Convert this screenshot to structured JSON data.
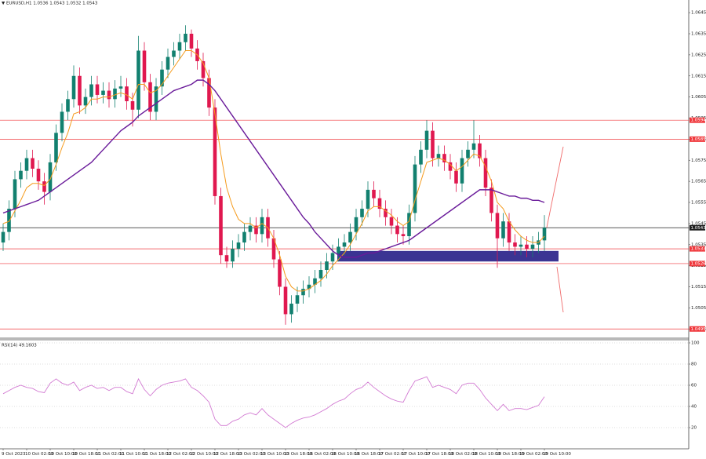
{
  "chart_data": [
    {
      "type": "candlestick",
      "title": "EURUSD,H1 1.0536 1.0543 1.0532 1.0543",
      "categories": [
        "9 Oct 2023",
        null,
        null,
        null,
        "10 Oct 02:00",
        null,
        null,
        null,
        "10 Oct 10:00",
        null,
        null,
        null,
        "10 Oct 18:00",
        null,
        null,
        null,
        "11 Oct 02:00",
        null,
        null,
        null,
        "11 Oct 10:00",
        null,
        null,
        null,
        "11 Oct 18:00",
        null,
        null,
        null,
        "12 Oct 02:00",
        null,
        null,
        null,
        "12 Oct 10:00",
        null,
        null,
        null,
        "12 Oct 18:00",
        null,
        null,
        null,
        "13 Oct 02:00",
        null,
        null,
        null,
        "13 Oct 10:00",
        null,
        null,
        null,
        "13 Oct 18:00",
        null,
        null,
        null,
        "16 Oct 02:00",
        null,
        null,
        null,
        "16 Oct 10:00",
        null,
        null,
        null,
        "16 Oct 18:00",
        null,
        null,
        null,
        "17 Oct 02:00",
        null,
        null,
        null,
        "17 Oct 10:00",
        null,
        null,
        null,
        "17 Oct 18:00",
        null,
        null,
        null,
        "18 Oct 02:00",
        null,
        null,
        null,
        "18 Oct 10:00",
        null,
        null,
        null,
        "18 Oct 18:00",
        null,
        null,
        null,
        "19 Oct 02:00",
        null,
        null,
        null,
        "19 Oct 10:00"
      ],
      "open": [
        1.0536,
        1.0541,
        1.0552,
        1.0566,
        1.057,
        1.0576,
        1.0571,
        1.0565,
        1.056,
        1.0574,
        1.0588,
        1.0598,
        1.0604,
        1.0615,
        1.0601,
        1.0605,
        1.0611,
        1.0606,
        1.0608,
        1.0604,
        1.0609,
        1.061,
        1.0603,
        1.0599,
        1.0627,
        1.0612,
        1.0598,
        1.061,
        1.0618,
        1.0624,
        1.0627,
        1.0631,
        1.0635,
        1.0628,
        1.0622,
        1.0614,
        1.06,
        1.0558,
        1.053,
        1.0527,
        1.0533,
        1.0536,
        1.0541,
        1.0544,
        1.054,
        1.0548,
        1.0538,
        1.0528,
        1.0515,
        1.0502,
        1.0507,
        1.0511,
        1.0514,
        1.0516,
        1.0519,
        1.0523,
        1.0527,
        1.0531,
        1.0534,
        1.0536,
        1.0541,
        1.0548,
        1.0552,
        1.0561,
        1.0557,
        1.0552,
        1.0548,
        1.0544,
        1.054,
        1.0539,
        1.055,
        1.0573,
        1.058,
        1.0589,
        1.0576,
        1.0578,
        1.0574,
        1.057,
        1.0564,
        1.0576,
        1.058,
        1.0583,
        1.0576,
        1.0562,
        1.055,
        1.0538,
        1.0546,
        1.0536,
        1.0534,
        1.0535,
        1.0533,
        1.0535,
        1.0537
      ],
      "high": [
        1.0545,
        1.0556,
        1.057,
        1.0574,
        1.058,
        1.058,
        1.0575,
        1.0569,
        1.0578,
        1.0592,
        1.0602,
        1.0608,
        1.062,
        1.0619,
        1.0609,
        1.0615,
        1.0615,
        1.0612,
        1.0612,
        1.0613,
        1.0615,
        1.0614,
        1.0607,
        1.0634,
        1.0631,
        1.0616,
        1.0614,
        1.0622,
        1.0628,
        1.0631,
        1.0635,
        1.0639,
        1.0637,
        1.0632,
        1.0626,
        1.0618,
        1.0604,
        1.0562,
        1.0534,
        1.0537,
        1.054,
        1.0545,
        1.0548,
        1.0548,
        1.0552,
        1.0552,
        1.0542,
        1.0532,
        1.0519,
        1.0511,
        1.0515,
        1.0518,
        1.052,
        1.0523,
        1.0527,
        1.0531,
        1.0535,
        1.0538,
        1.054,
        1.0545,
        1.0552,
        1.0556,
        1.0565,
        1.0565,
        1.0561,
        1.0556,
        1.0552,
        1.0548,
        1.0544,
        1.0554,
        1.0577,
        1.0584,
        1.0594,
        1.0593,
        1.0582,
        1.0582,
        1.0578,
        1.0574,
        1.058,
        1.0584,
        1.0594,
        1.0587,
        1.058,
        1.0566,
        1.0554,
        1.055,
        1.055,
        1.054,
        1.0539,
        1.0539,
        1.0539,
        1.0541,
        1.0549
      ],
      "low": [
        1.0532,
        1.0537,
        1.0548,
        1.0562,
        1.0566,
        1.0567,
        1.0561,
        1.0554,
        1.0556,
        1.057,
        1.0584,
        1.0594,
        1.06,
        1.0597,
        1.0597,
        1.0601,
        1.0602,
        1.0602,
        1.06,
        1.06,
        1.0605,
        1.0599,
        1.0591,
        1.0595,
        1.0608,
        1.0594,
        1.0594,
        1.0606,
        1.0614,
        1.062,
        1.0623,
        1.0627,
        1.0624,
        1.0618,
        1.061,
        1.0596,
        1.0554,
        1.0526,
        1.0524,
        1.0524,
        1.0529,
        1.0532,
        1.0537,
        1.0536,
        1.0536,
        1.0534,
        1.0524,
        1.0511,
        1.0497,
        1.0498,
        1.0503,
        1.0507,
        1.051,
        1.0512,
        1.0515,
        1.0519,
        1.0523,
        1.0527,
        1.053,
        1.0532,
        1.0537,
        1.0544,
        1.0548,
        1.0553,
        1.0548,
        1.0544,
        1.054,
        1.0536,
        1.0535,
        1.0535,
        1.0546,
        1.0569,
        1.0576,
        1.0572,
        1.0572,
        1.057,
        1.0566,
        1.056,
        1.056,
        1.0572,
        1.0576,
        1.0572,
        1.0558,
        1.0546,
        1.0524,
        1.0534,
        1.0532,
        1.053,
        1.053,
        1.0529,
        1.0529,
        1.0531,
        1.0532
      ],
      "close": [
        1.0541,
        1.0552,
        1.0566,
        1.057,
        1.0576,
        1.0571,
        1.0565,
        1.056,
        1.0574,
        1.0588,
        1.0598,
        1.0604,
        1.0615,
        1.0601,
        1.0605,
        1.0611,
        1.0606,
        1.0608,
        1.0604,
        1.0609,
        1.061,
        1.0603,
        1.0599,
        1.0627,
        1.0612,
        1.0598,
        1.061,
        1.0618,
        1.0624,
        1.0627,
        1.0631,
        1.0635,
        1.0628,
        1.0622,
        1.0614,
        1.06,
        1.0558,
        1.053,
        1.0527,
        1.0533,
        1.0536,
        1.0541,
        1.0544,
        1.054,
        1.0548,
        1.0538,
        1.0528,
        1.0515,
        1.0502,
        1.0507,
        1.0511,
        1.0514,
        1.0516,
        1.0519,
        1.0523,
        1.0527,
        1.0531,
        1.0534,
        1.0536,
        1.0541,
        1.0548,
        1.0552,
        1.0561,
        1.0557,
        1.0552,
        1.0548,
        1.0544,
        1.054,
        1.0539,
        1.055,
        1.0573,
        1.058,
        1.0589,
        1.0576,
        1.0578,
        1.0574,
        1.057,
        1.0564,
        1.0576,
        1.058,
        1.0583,
        1.0576,
        1.0562,
        1.055,
        1.0538,
        1.0546,
        1.0536,
        1.0534,
        1.0535,
        1.0533,
        1.0535,
        1.0537,
        1.0543
      ],
      "up_color": "#12806f",
      "down_color": "#e0184f",
      "series": [
        {
          "color": "#f59a1b",
          "values": [
            1.0545,
            1.0546,
            1.0551,
            1.0556,
            1.0562,
            1.0564,
            1.0564,
            1.0563,
            1.0566,
            1.0573,
            1.0581,
            1.0588,
            1.0597,
            1.0598,
            1.06,
            1.0604,
            1.0604,
            1.0605,
            1.0605,
            1.0606,
            1.0607,
            1.0606,
            1.0604,
            1.0611,
            1.0611,
            1.0607,
            1.0608,
            1.0611,
            1.0615,
            1.0619,
            1.0623,
            1.0627,
            1.0627,
            1.0625,
            1.0621,
            1.0614,
            1.0597,
            1.0578,
            1.0562,
            1.0553,
            1.0547,
            1.0545,
            1.0545,
            1.0543,
            1.0545,
            1.0543,
            1.0538,
            1.053,
            1.052,
            1.0515,
            1.0513,
            1.0513,
            1.0514,
            1.0516,
            1.0518,
            1.0521,
            1.0525,
            1.0528,
            1.0531,
            1.0535,
            1.054,
            1.0545,
            1.0551,
            1.0553,
            1.0553,
            1.0551,
            1.0549,
            1.0546,
            1.0544,
            1.0546,
            1.0556,
            1.0565,
            1.0574,
            1.0575,
            1.0576,
            1.0575,
            1.0573,
            1.057,
            1.0572,
            1.0575,
            1.0578,
            1.0577,
            1.0572,
            1.0565,
            1.0555,
            1.0552,
            1.0546,
            1.0542,
            1.0539,
            1.0537,
            1.0536,
            1.0536,
            1.0539
          ]
        },
        {
          "color": "#6a1b9a",
          "values": [
            1.055,
            1.0551,
            1.0552,
            1.0553,
            1.0554,
            1.0555,
            1.0556,
            1.0558,
            1.056,
            1.0562,
            1.0564,
            1.0566,
            1.0568,
            1.057,
            1.0572,
            1.0574,
            1.0577,
            1.058,
            1.0583,
            1.0586,
            1.0589,
            1.0591,
            1.0593,
            1.0596,
            1.0598,
            1.06,
            1.0602,
            1.0604,
            1.0606,
            1.0608,
            1.0609,
            1.061,
            1.0611,
            1.0613,
            1.0613,
            1.0611,
            1.0608,
            1.0604,
            1.06,
            1.0596,
            1.0592,
            1.0588,
            1.0584,
            1.058,
            1.0576,
            1.0572,
            1.0568,
            1.0564,
            1.056,
            1.0556,
            1.0552,
            1.0548,
            1.0545,
            1.0541,
            1.0538,
            1.0535,
            1.0532,
            1.053,
            1.0529,
            1.0529,
            1.0529,
            1.053,
            1.0531,
            1.0531,
            1.0532,
            1.0533,
            1.0534,
            1.0535,
            1.0536,
            1.0537,
            1.0539,
            1.0541,
            1.0543,
            1.0545,
            1.0547,
            1.0549,
            1.0551,
            1.0553,
            1.0555,
            1.0557,
            1.0559,
            1.0561,
            1.0561,
            1.0561,
            1.056,
            1.0559,
            1.0558,
            1.0558,
            1.0557,
            1.0557,
            1.0556,
            1.0556,
            1.0555
          ]
        }
      ],
      "levels": [
        {
          "value": 1.0594,
          "color": "#f0393d"
        },
        {
          "value": 1.0585,
          "color": "#f0393d"
        },
        {
          "value": 1.0543,
          "color": "#202020"
        },
        {
          "value": 1.0533,
          "color": "#f0393d"
        },
        {
          "value": 1.0526,
          "color": "#f0393d"
        },
        {
          "value": 1.0495,
          "color": "#f0393d"
        }
      ],
      "zone": [
        1.0527,
        1.0532
      ],
      "zone_color": "#3b3493",
      "ylim": [
        1.0491,
        1.0651
      ],
      "yticks": [
        1.0645,
        1.0635,
        1.0625,
        1.0615,
        1.0605,
        1.0595,
        1.0585,
        1.0575,
        1.0565,
        1.0555,
        1.0545,
        1.0535,
        1.0525,
        1.0515,
        1.0505,
        1.0495
      ]
    },
    {
      "type": "line",
      "title": "RSI(14) 49.1603",
      "color": "#d27ad2",
      "values": [
        52,
        55,
        58,
        60,
        58,
        57,
        54,
        53,
        62,
        66,
        62,
        60,
        63,
        55,
        58,
        60,
        57,
        58,
        55,
        58,
        58,
        54,
        52,
        66,
        56,
        50,
        56,
        60,
        62,
        63,
        64,
        66,
        58,
        55,
        50,
        44,
        28,
        22,
        22,
        26,
        28,
        32,
        34,
        32,
        38,
        32,
        28,
        24,
        20,
        24,
        27,
        29,
        30,
        32,
        35,
        38,
        42,
        45,
        47,
        52,
        56,
        58,
        63,
        58,
        54,
        50,
        47,
        45,
        44,
        55,
        64,
        66,
        68,
        58,
        60,
        58,
        56,
        52,
        60,
        62,
        62,
        56,
        48,
        42,
        36,
        42,
        36,
        38,
        38,
        37,
        39,
        41,
        49.1603
      ],
      "ylim": [
        0,
        100
      ],
      "yticks": [
        100,
        80,
        60,
        40,
        20
      ],
      "grid": true
    }
  ]
}
